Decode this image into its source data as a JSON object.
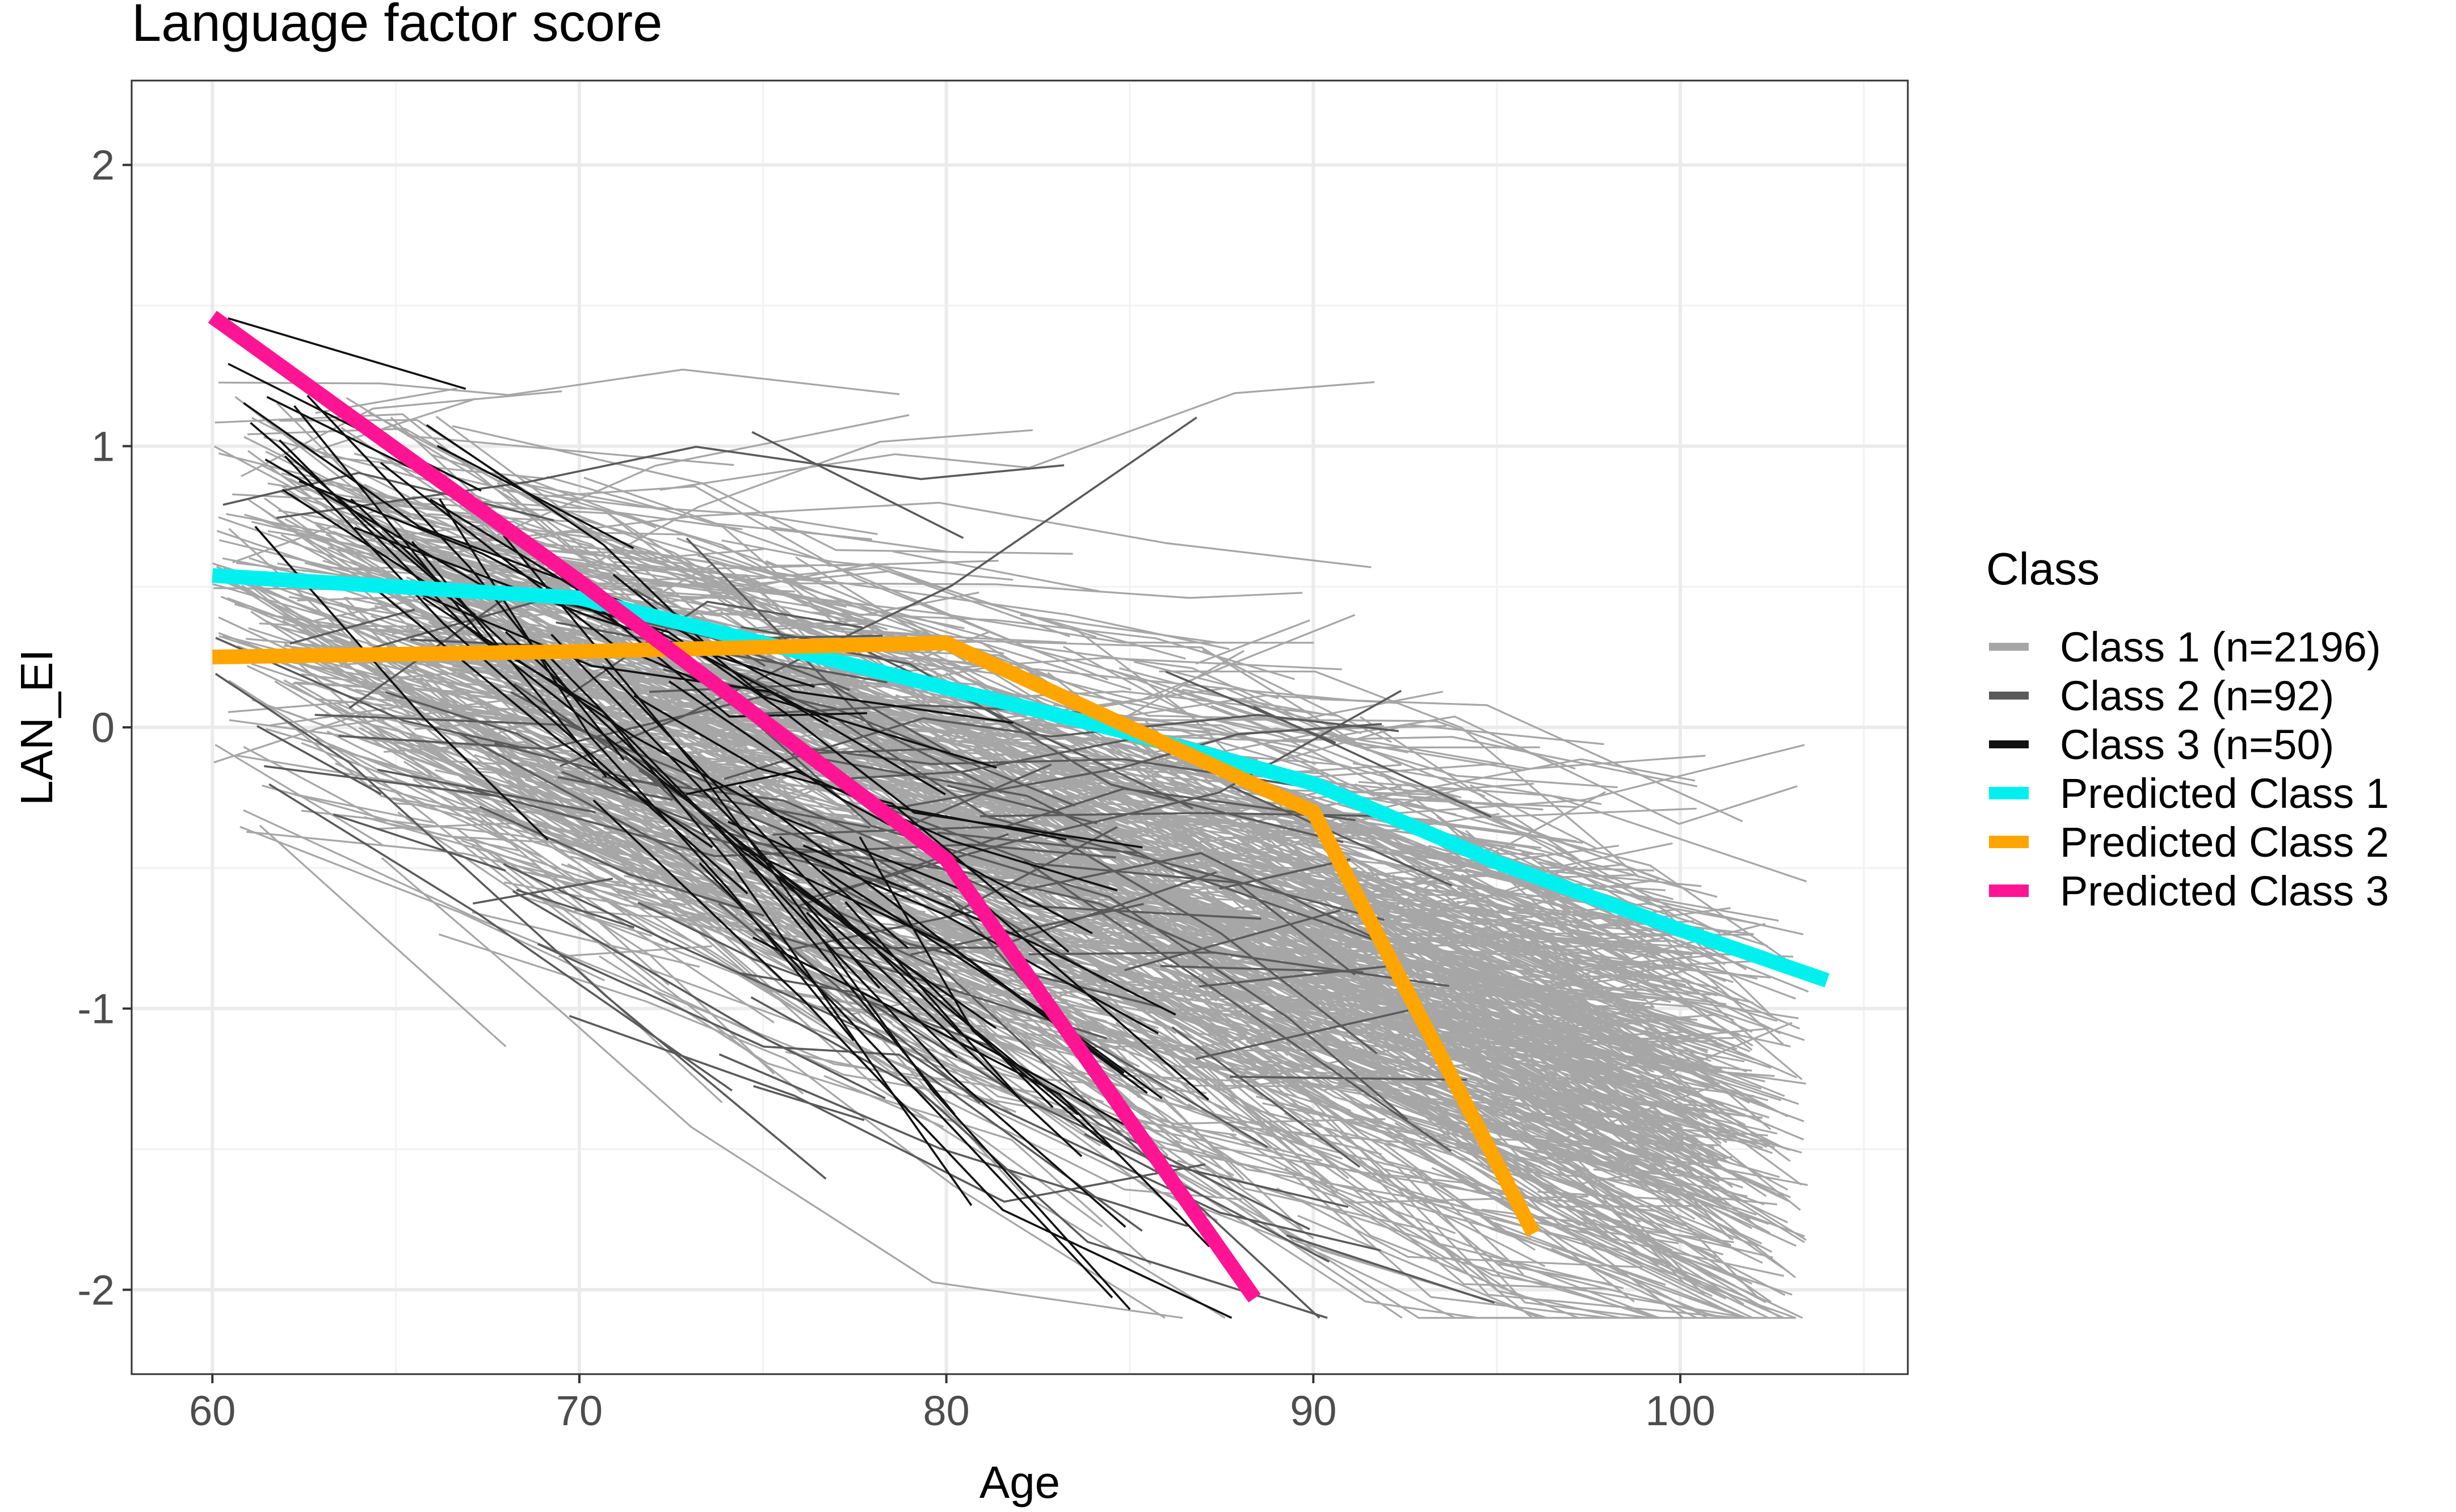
{
  "chart_data": {
    "type": "line",
    "title": "Language factor score",
    "xlabel": "Age",
    "ylabel": "LAN_EI",
    "xlim": [
      57.8,
      106.2
    ],
    "ylim": [
      -2.3,
      2.3
    ],
    "x_ticks": [
      60,
      70,
      80,
      90,
      100
    ],
    "x_tick_labels": [
      "60",
      "70",
      "80",
      "90",
      "100"
    ],
    "y_ticks": [
      -2,
      -1,
      0,
      1,
      2
    ],
    "y_tick_labels": [
      "-2",
      "-1",
      "0",
      "1",
      "2"
    ],
    "grid": true,
    "legend": {
      "title": "Class",
      "placement": "right",
      "entries": [
        {
          "label": "Class 1 (n=2196)",
          "color": "#a6a6a6"
        },
        {
          "label": "Class 2 (n=92)",
          "color": "#5a5a5a"
        },
        {
          "label": "Class 3 (n=50)",
          "color": "#111111"
        },
        {
          "label": "Predicted Class 1",
          "color": "#00f0f0"
        },
        {
          "label": "Predicted Class 2",
          "color": "#ffa500"
        },
        {
          "label": "Predicted Class 3",
          "color": "#ff1493"
        }
      ]
    },
    "series": [
      {
        "name": "Predicted Class 1",
        "color": "#00f0f0",
        "points": [
          [
            60,
            0.54
          ],
          [
            70,
            0.46
          ],
          [
            75,
            0.3
          ],
          [
            80,
            0.14
          ],
          [
            85,
            -0.02
          ],
          [
            90,
            -0.2
          ],
          [
            95,
            -0.48
          ],
          [
            100,
            -0.72
          ],
          [
            104,
            -0.9
          ]
        ]
      },
      {
        "name": "Predicted Class 2",
        "color": "#ffa500",
        "points": [
          [
            60,
            0.25
          ],
          [
            70,
            0.27
          ],
          [
            80,
            0.3
          ],
          [
            90,
            -0.3
          ],
          [
            96,
            -1.8
          ]
        ]
      },
      {
        "name": "Predicted Class 3",
        "color": "#ff1493",
        "points": [
          [
            60,
            1.46
          ],
          [
            70,
            0.52
          ],
          [
            80,
            -0.47
          ],
          [
            88.4,
            -2.03
          ]
        ]
      }
    ],
    "individual_trajectories": [
      {
        "class": "Class 1 (n=2196)",
        "color": "#a6a6a6",
        "count": 2196
      },
      {
        "class": "Class 2 (n=92)",
        "color": "#5a5a5a",
        "count": 92
      },
      {
        "class": "Class 3 (n=50)",
        "color": "#111111",
        "count": 50
      }
    ]
  }
}
